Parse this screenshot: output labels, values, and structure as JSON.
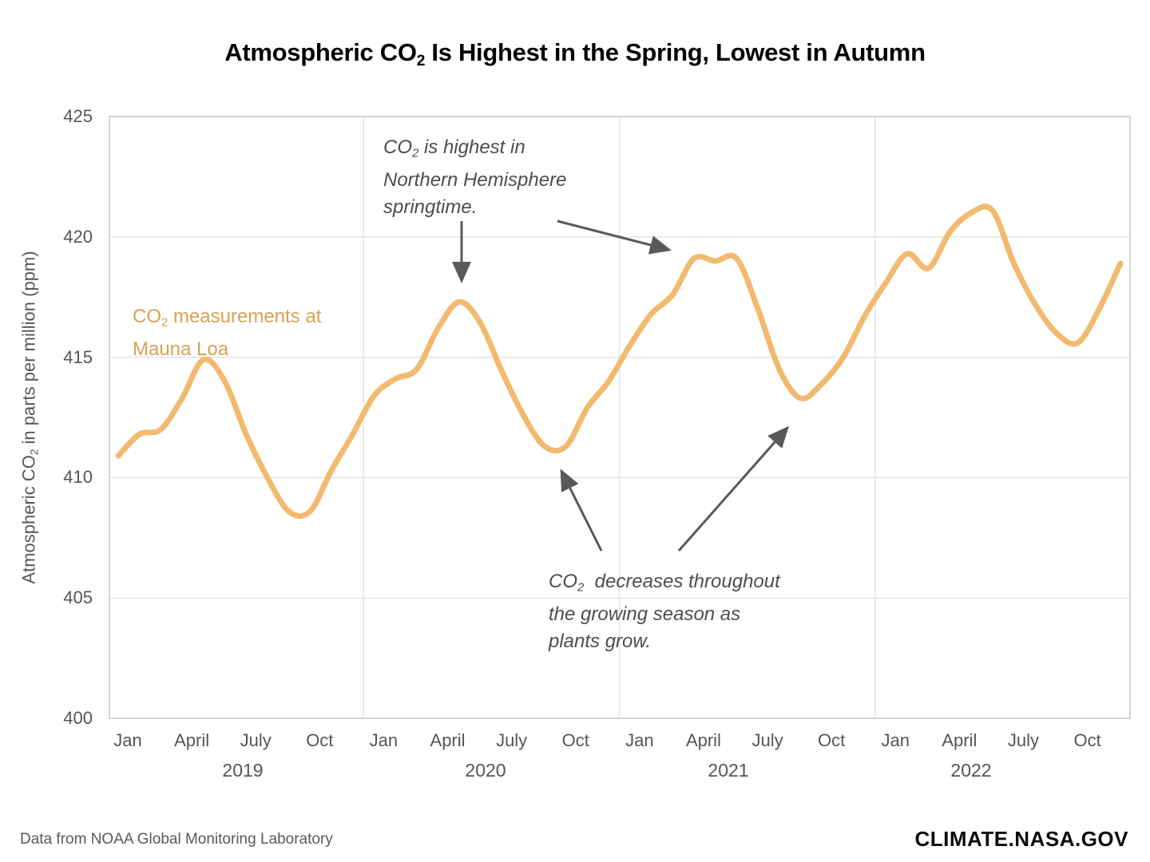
{
  "title": {
    "pre": "Atmospheric CO",
    "sub": "2",
    "post": " Is Highest in the Spring, Lowest in Autumn"
  },
  "y_axis_title": {
    "pre": "Atmospheric CO",
    "sub": "2",
    "post": " in parts per million (ppm)"
  },
  "series_label": {
    "pre": "CO",
    "sub": "2",
    "post": " measurements at",
    "line2": "Mauna Loa"
  },
  "annotations": {
    "spring": {
      "pre": "CO",
      "sub": "2",
      "post": " is highest in",
      "line2": "Northern Hemisphere",
      "line3": "springtime."
    },
    "growing": {
      "pre": "CO",
      "sub": "2",
      "post": "  decreases throughout",
      "line2": "the growing season as",
      "line3": "plants grow."
    }
  },
  "footer": {
    "source": "Data from NOAA Global Monitoring Laboratory",
    "brand": "CLIMATE.NASA.GOV"
  },
  "colors": {
    "line": "#F2B96F",
    "series_label_text": "#D9A156",
    "annotation_text": "#4D4D4D",
    "axis_text": "#555555",
    "gridline": "#E4E4E4",
    "plot_border": "#C6C6C6",
    "arrow": "#58595B",
    "title_text": "#000000"
  },
  "chart_data": {
    "type": "line",
    "title": "Atmospheric CO2 Is Highest in the Spring, Lowest in Autumn",
    "xlabel": "",
    "ylabel": "Atmospheric CO2 in parts per million (ppm)",
    "ylim": [
      400,
      425
    ],
    "yticks": [
      425,
      420,
      415,
      410,
      405,
      400
    ],
    "x_months": [
      "Jan",
      "April",
      "July",
      "Oct"
    ],
    "years": [
      "2019",
      "2020",
      "2021",
      "2022"
    ],
    "x_start": "Jan 2019",
    "x_interval": "monthly",
    "grid": true,
    "legend_position": "inline-label-left",
    "series": [
      {
        "name": "CO2 measurements at Mauna Loa",
        "unit": "ppm",
        "values": [
          410.9,
          411.8,
          412.0,
          413.3,
          414.9,
          414.0,
          411.8,
          410.0,
          408.6,
          408.6,
          410.3,
          411.8,
          413.4,
          414.1,
          414.5,
          416.2,
          417.3,
          416.4,
          414.4,
          412.6,
          411.3,
          411.3,
          412.9,
          414.0,
          415.5,
          416.8,
          417.6,
          419.1,
          419.0,
          419.1,
          417.0,
          414.5,
          413.3,
          413.9,
          415.0,
          416.7,
          418.1,
          419.3,
          418.7,
          420.2,
          421.0,
          421.1,
          418.9,
          417.2,
          416.0,
          415.6,
          417.0,
          418.9
        ]
      }
    ],
    "annotations": [
      "CO2 is highest in Northern Hemisphere springtime.",
      "CO2 decreases throughout the growing season as plants grow."
    ]
  }
}
